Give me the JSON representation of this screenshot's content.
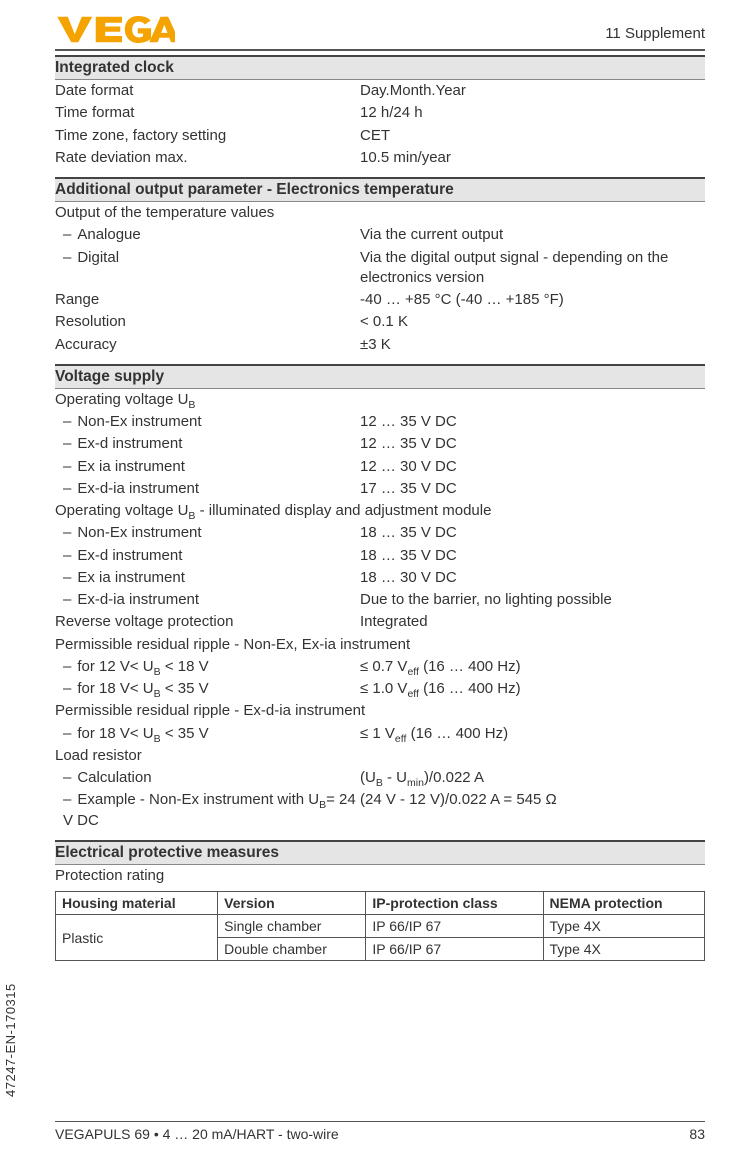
{
  "header": {
    "logo_fill": "#f5a300",
    "chapter": "11 Supplement"
  },
  "sections": {
    "clock": {
      "title": "Integrated clock",
      "rows": [
        {
          "label": "Date format",
          "value": "Day.Month.Year"
        },
        {
          "label": "Time format",
          "value": "12 h/24 h"
        },
        {
          "label": "Time zone, factory setting",
          "value": "CET"
        },
        {
          "label": "Rate deviation max.",
          "value": "10.5 min/year"
        }
      ]
    },
    "temp": {
      "title": "Additional output parameter - Electronics temperature",
      "sub1": "Output of the temperature values",
      "item1_label": "Analogue",
      "item1_value": "Via the current output",
      "item2_label": "Digital",
      "item2_value": "Via the digital output signal - depending on the electronics version",
      "range_label": "Range",
      "range_value": "-40 … +85 °C (-40 … +185 °F)",
      "res_label": "Resolution",
      "res_value": "< 0.1 K",
      "acc_label": "Accuracy",
      "acc_value": "±3 K"
    },
    "voltage": {
      "title": "Voltage supply",
      "ub_html": "Operating voltage U<sub>B</sub>",
      "ub_rows": [
        {
          "label": "Non-Ex instrument",
          "value": "12 … 35 V DC"
        },
        {
          "label": "Ex-d instrument",
          "value": "12 … 35 V DC"
        },
        {
          "label": "Ex ia instrument",
          "value": "12 … 30 V DC"
        },
        {
          "label": "Ex-d-ia instrument",
          "value": "17 … 35 V DC"
        }
      ],
      "ub2_html": "Operating voltage U<sub>B</sub> - illuminated display and adjustment module",
      "ub2_rows": [
        {
          "label": "Non-Ex instrument",
          "value": "18 … 35 V DC"
        },
        {
          "label": "Ex-d instrument",
          "value": "18 … 35 V DC"
        },
        {
          "label": "Ex ia instrument",
          "value": "18 … 30 V DC"
        },
        {
          "label": "Ex-d-ia instrument",
          "value": "Due to the barrier, no lighting possible"
        }
      ],
      "rev_label": "Reverse voltage protection",
      "rev_value": "Integrated",
      "ripple1_heading": "Permissible residual ripple - Non-Ex, Ex-ia instrument",
      "ripple1_rows": [
        {
          "label_html": "for 12 V< U<sub>B</sub> < 18 V",
          "value_html": "≤ 0.7 V<sub>eff</sub> (16 … 400 Hz)"
        },
        {
          "label_html": "for 18 V< U<sub>B</sub> < 35 V",
          "value_html": "≤ 1.0 V<sub>eff</sub> (16 … 400 Hz)"
        }
      ],
      "ripple2_heading": "Permissible residual ripple - Ex-d-ia instrument",
      "ripple2_rows": [
        {
          "label_html": "for 18 V< U<sub>B</sub> < 35 V",
          "value_html": "≤ 1 V<sub>eff</sub> (16 … 400 Hz)"
        }
      ],
      "load_heading": "Load resistor",
      "calc_label": "Calculation",
      "calc_value_html": "(U<sub>B</sub> - U<sub>min</sub>)/0.022 A",
      "example_label_html": "Example - Non-Ex instrument with U<sub>B</sub>= 24 V DC",
      "example_value": "(24 V - 12 V)/0.022 A = 545 Ω"
    },
    "protective": {
      "title": "Electrical protective measures",
      "sub": "Protection rating",
      "cols": [
        "Housing material",
        "Version",
        "IP-protection class",
        "NEMA protection"
      ],
      "rows": [
        [
          "Plastic",
          "Single chamber",
          "IP 66/IP 67",
          "Type 4X"
        ],
        [
          "",
          "Double chamber",
          "IP 66/IP 67",
          "Type 4X"
        ]
      ]
    }
  },
  "footer": {
    "product": "VEGAPULS 69 • 4 … 20 mA/HART - two-wire",
    "page": "83",
    "docid": "47247-EN-170315"
  }
}
